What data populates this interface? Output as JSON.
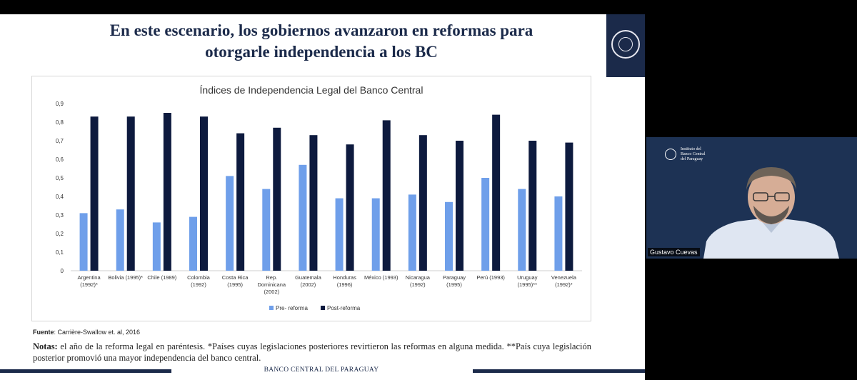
{
  "slide": {
    "title_line1": "En este escenario, los gobiernos avanzaron en reformas para",
    "title_line2": "otorgarle independencia a los BC",
    "source_label": "Fuente",
    "source_text": ": Carrière-Swallow et. al, 2016",
    "notes_label": "Notas:",
    "notes_text": " el año de la reforma legal en paréntesis. *Países cuyas legislaciones posteriores revirtieron las reformas en alguna medida. **País cuya legislación posterior promovió una mayor independencia del banco central.",
    "footer": "BANCO CENTRAL DEL PARAGUAY"
  },
  "chart_data": {
    "type": "bar",
    "title": "Índices de Independencia Legal del Banco Central",
    "categories": [
      [
        "Argentina",
        "(1992)*"
      ],
      [
        "Bolivia (1995)*"
      ],
      [
        "Chile (1989)"
      ],
      [
        "Colombia",
        "(1992)"
      ],
      [
        "Costa Rica",
        "(1995)"
      ],
      [
        "Rep.",
        "Dominicana",
        "(2002)"
      ],
      [
        "Guatemala",
        "(2002)"
      ],
      [
        "Honduras",
        "(1996)"
      ],
      [
        "México (1993)"
      ],
      [
        "Nicaragua",
        "(1992)"
      ],
      [
        "Paraguay",
        "(1995)"
      ],
      [
        "Perú (1993)"
      ],
      [
        "Uruguay",
        "(1995)**"
      ],
      [
        "Venezuela",
        "(1992)*"
      ]
    ],
    "series": [
      {
        "name": "Pre- reforma",
        "color": "#6f9fea",
        "values": [
          0.31,
          0.33,
          0.26,
          0.29,
          0.51,
          0.44,
          0.57,
          0.39,
          0.39,
          0.41,
          0.37,
          0.5,
          0.44,
          0.4
        ]
      },
      {
        "name": "Post-reforma",
        "color": "#0d1a3e",
        "values": [
          0.83,
          0.83,
          0.85,
          0.83,
          0.74,
          0.77,
          0.73,
          0.68,
          0.81,
          0.73,
          0.7,
          0.84,
          0.7,
          0.69
        ]
      }
    ],
    "yticks": [
      "0",
      "0,1",
      "0,2",
      "0,3",
      "0,4",
      "0,5",
      "0,6",
      "0,7",
      "0,8",
      "0,9"
    ],
    "ylim": [
      0,
      0.9
    ],
    "grid": false,
    "legend": "bottom-center"
  },
  "video": {
    "participant_name": "Gustavo Cuevas",
    "logo_text": [
      "Instituto del",
      "Banco Central",
      "del Paraguay"
    ]
  }
}
